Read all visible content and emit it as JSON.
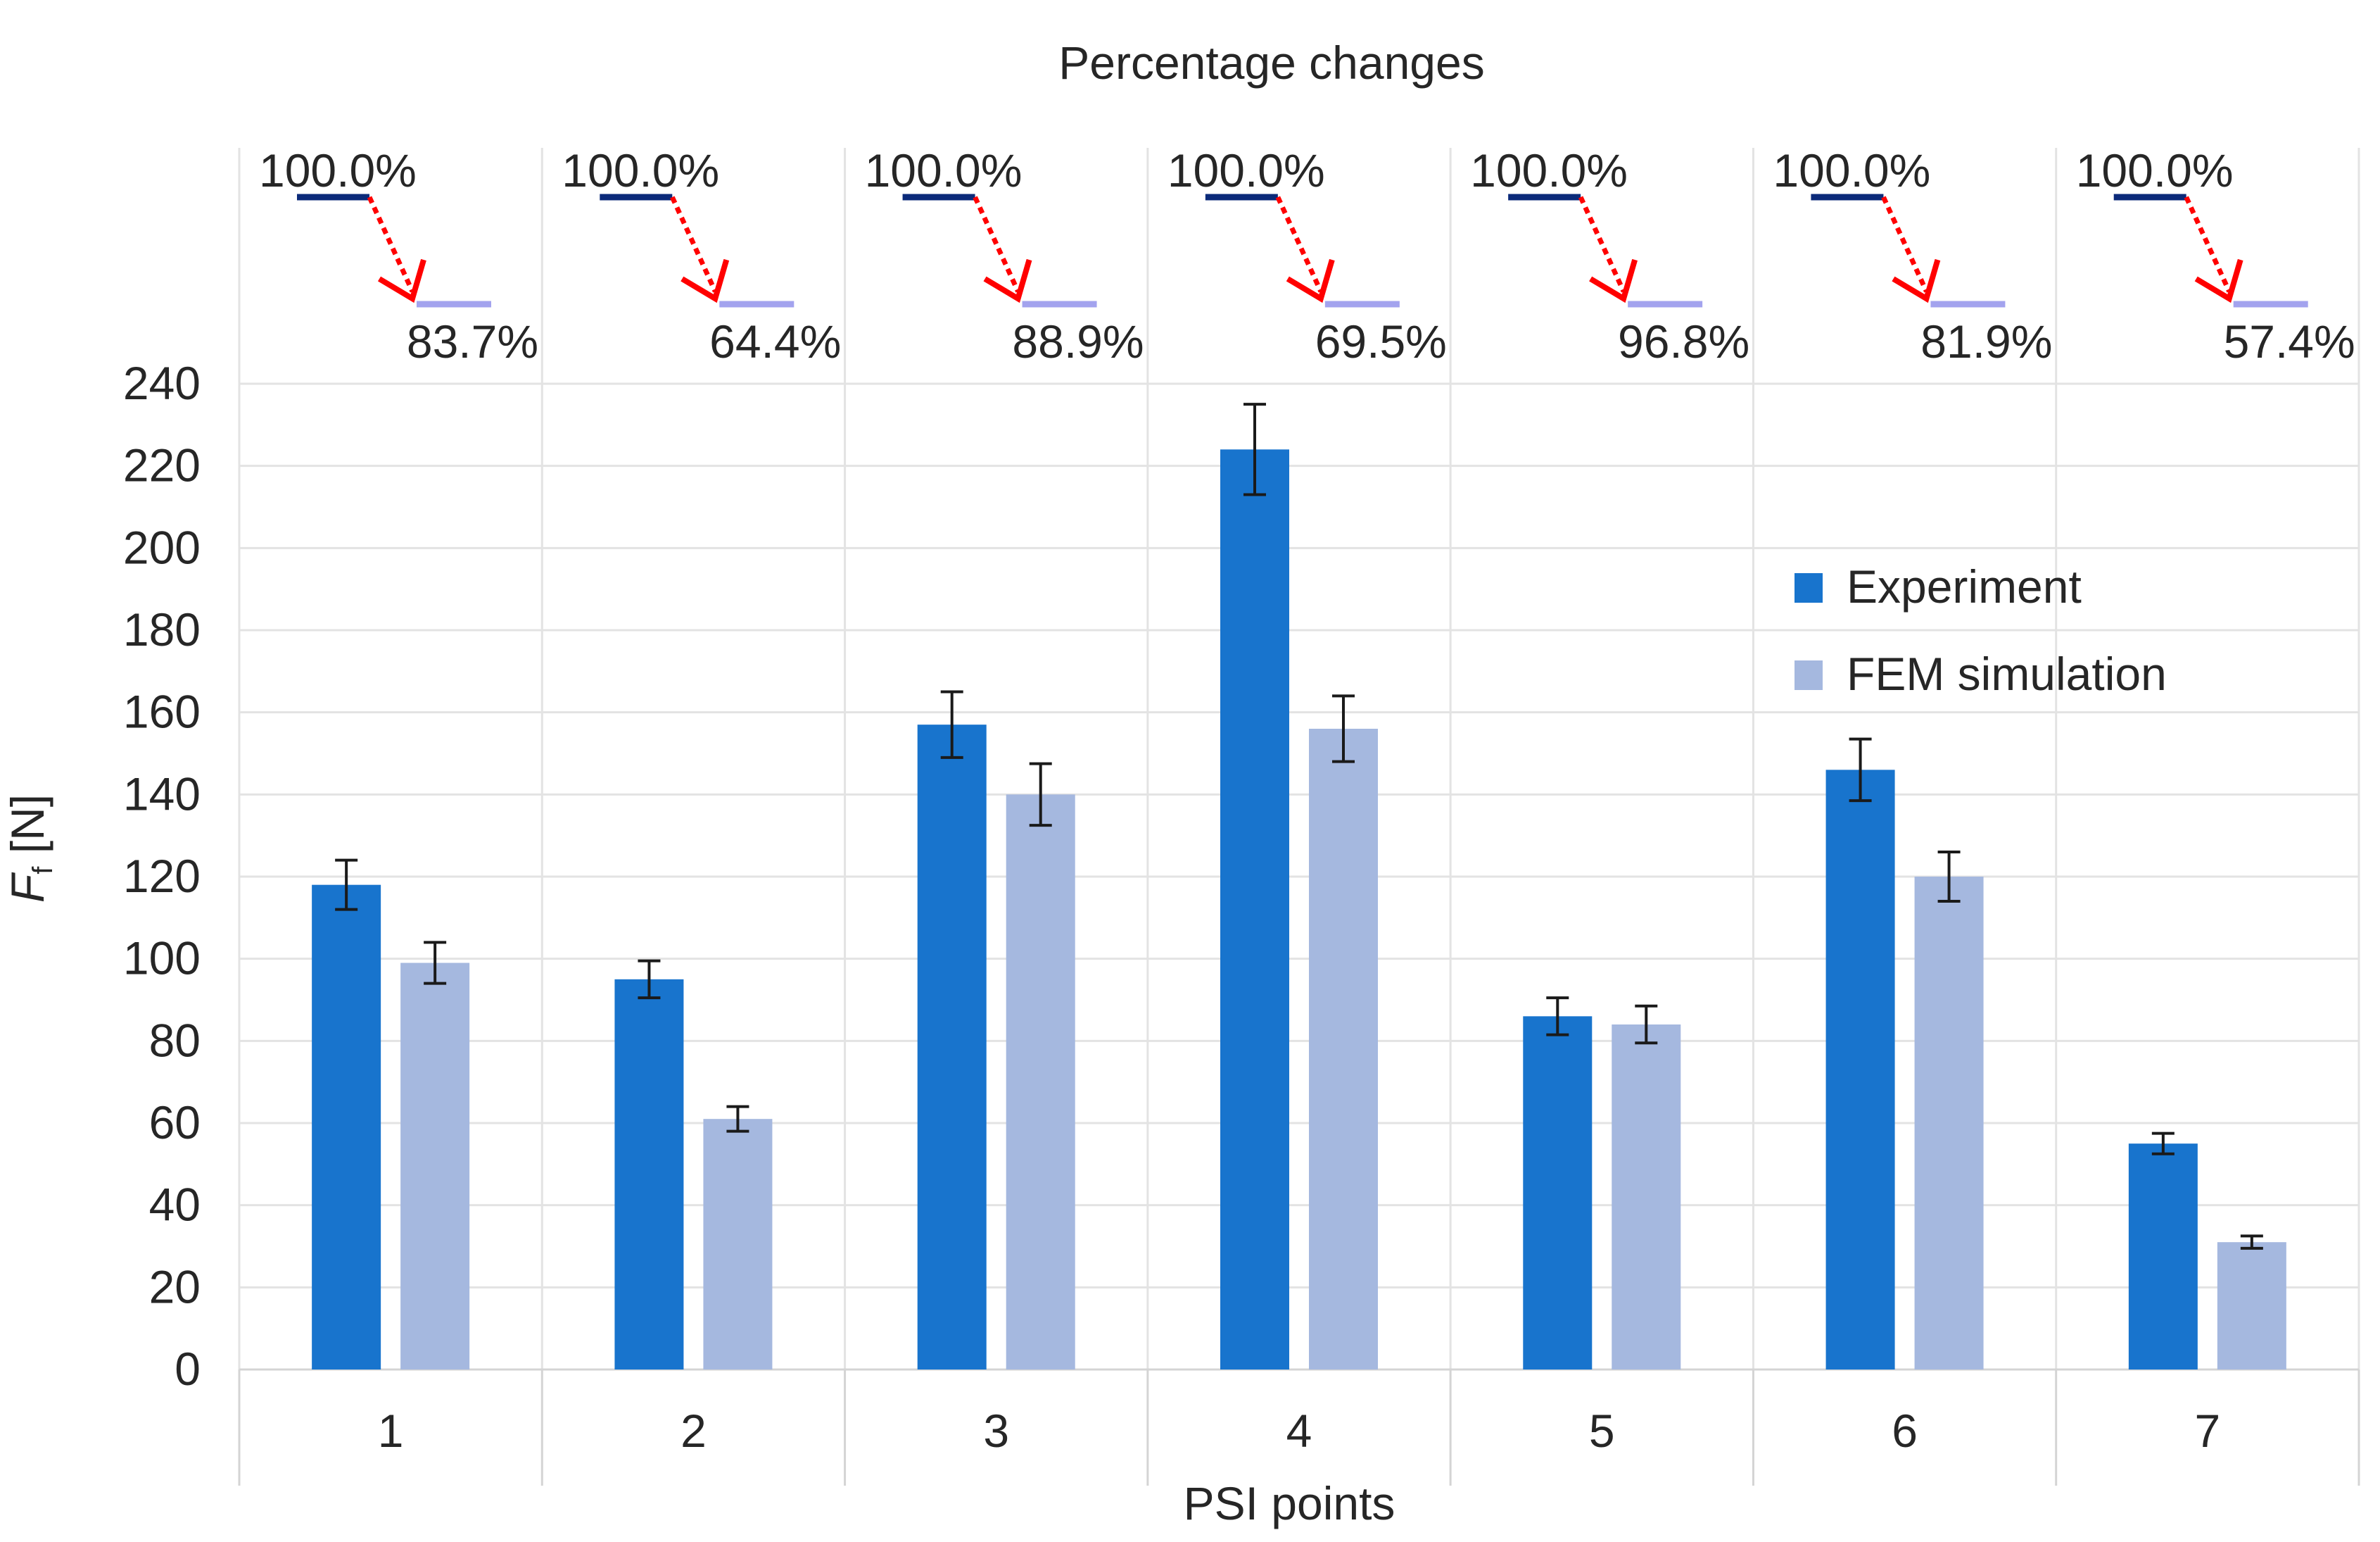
{
  "chart_data": {
    "type": "bar",
    "title": "Percentage changes",
    "xlabel": "PSI points",
    "ylabel_main": "F",
    "ylabel_sub": "f",
    "ylabel_unit": " [N]",
    "ylim": [
      0,
      240
    ],
    "ytick_step": 20,
    "categories": [
      "1",
      "2",
      "3",
      "4",
      "5",
      "6",
      "7"
    ],
    "series": [
      {
        "name": "Experiment",
        "color": "#1874cd",
        "values": [
          118,
          95,
          157,
          224,
          86,
          146,
          55
        ],
        "errors": [
          6,
          4.5,
          8,
          11,
          4.5,
          7.5,
          2.5
        ]
      },
      {
        "name": "FEM simulation",
        "color": "#a5b8df",
        "values": [
          99,
          61,
          140,
          156,
          84,
          120,
          31
        ],
        "errors": [
          5,
          3,
          7.5,
          8,
          4.5,
          6,
          1.5
        ]
      }
    ],
    "percentage_changes": {
      "start_labels": [
        "100.0%",
        "100.0%",
        "100.0%",
        "100.0%",
        "100.0%",
        "100.0%",
        "100.0%"
      ],
      "end_labels": [
        "83.7%",
        "64.4%",
        "88.9%",
        "69.5%",
        "96.8%",
        "81.9%",
        "57.4%"
      ],
      "start_line_color": "#0b2a7a",
      "end_line_color": "#a3a3ee",
      "arrow_color": "#ff0000"
    },
    "legend_position": "right",
    "grid": true
  }
}
